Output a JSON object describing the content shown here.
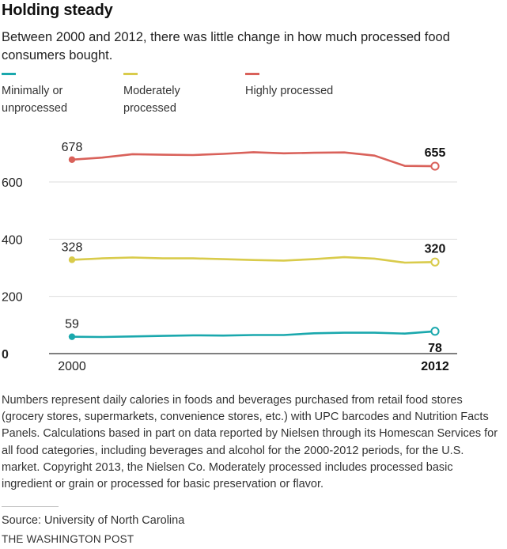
{
  "title": "Holding steady",
  "subtitle": "Between 2000 and 2012, there was little change in how much processed food consumers bought.",
  "legend": [
    {
      "label_line1": "Minimally or",
      "label_line2": "unprocessed",
      "color": "#1aa8ad"
    },
    {
      "label_line1": "Moderately",
      "label_line2": "processed",
      "color": "#d9cb4b"
    },
    {
      "label_line1": "Highly processed",
      "label_line2": "",
      "color": "#d9615a"
    }
  ],
  "chart_data": {
    "type": "line",
    "x": [
      2000,
      2001,
      2002,
      2003,
      2004,
      2005,
      2006,
      2007,
      2008,
      2009,
      2010,
      2011,
      2012
    ],
    "xtick_labels": [
      "2000",
      "2012"
    ],
    "yticks": [
      0,
      200,
      400,
      600
    ],
    "ylim": [
      0,
      700
    ],
    "grid": true,
    "legend_position": "top-left",
    "series": [
      {
        "name": "Highly processed",
        "color": "#d9615a",
        "values": [
          678,
          685,
          697,
          695,
          694,
          698,
          704,
          700,
          702,
          703,
          692,
          656,
          655
        ],
        "start_label": "678",
        "end_label": "655"
      },
      {
        "name": "Moderately processed",
        "color": "#d9cb4b",
        "values": [
          328,
          333,
          336,
          333,
          333,
          330,
          327,
          325,
          330,
          337,
          332,
          318,
          320
        ],
        "start_label": "328",
        "end_label": "320"
      },
      {
        "name": "Minimally or unprocessed",
        "color": "#1aa8ad",
        "values": [
          59,
          58,
          60,
          62,
          64,
          63,
          65,
          65,
          71,
          73,
          73,
          70,
          78
        ],
        "start_label": "59",
        "end_label": "78"
      }
    ]
  },
  "footnote": "Numbers represent daily calories in foods and beverages purchased from retail food stores (grocery stores, supermarkets, convenience stores, etc.) with UPC barcodes and Nutrition Facts Panels. Calculations based in part on data reported by Nielsen through its Homescan Services for all food categories, including beverages and alcohol for the 2000-2012 periods, for the U.S. market. Copyright 2013, the Nielsen Co. Moderately processed includes processed basic ingredient or grain or processed for basic preservation or flavor.",
  "source": "Source: University of North Carolina",
  "credit": "THE WASHINGTON POST"
}
